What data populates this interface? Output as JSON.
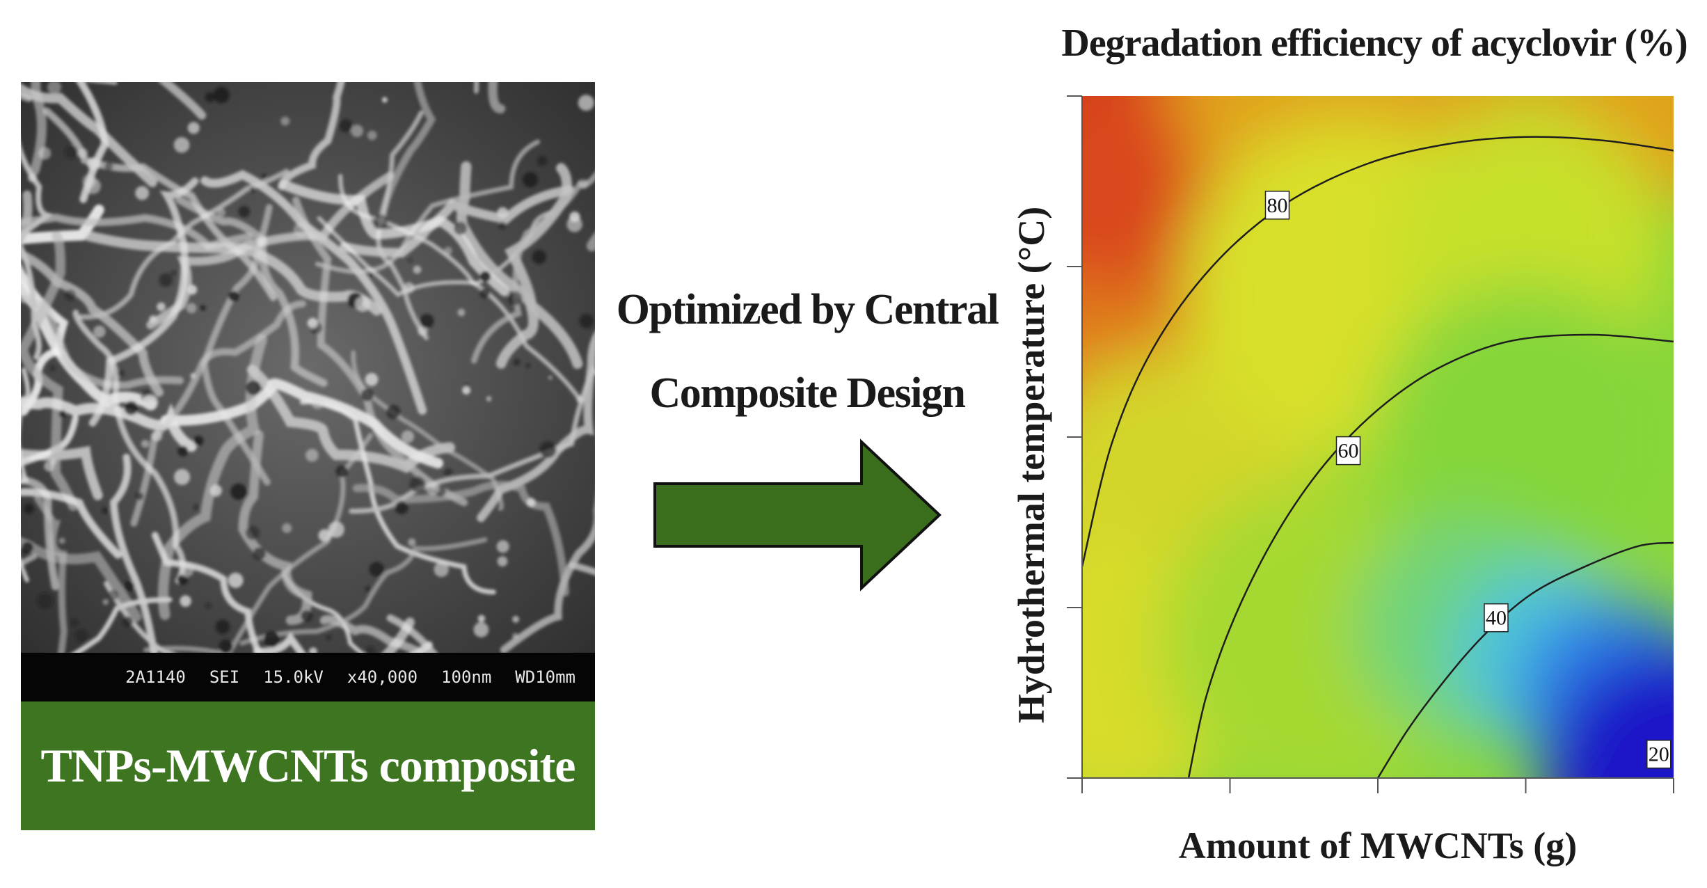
{
  "sem_panel": {
    "scalebar": {
      "sample_id": "2A1140",
      "detector": "SEI",
      "voltage": "15.0kV",
      "magnification": "x40,000",
      "scale": "100nm",
      "working_distance": "WD10mm"
    },
    "caption": "TNPs-MWCNTs composite"
  },
  "method": {
    "line1": "Optimized by Central",
    "line2": "Composite Design"
  },
  "colors": {
    "caption_bg": "#3e7520",
    "arrow_fill": "#3b6e1c",
    "arrow_stroke": "#111111",
    "high": "#c41a1a",
    "mid": "#d8e02a",
    "low": "#1a18c8"
  },
  "chart_data": {
    "type": "contour",
    "title": "Degradation efficiency of acyclovir (%)",
    "xlabel": "Amount of MWCNTs (g)",
    "ylabel": "Hydrothermal temperature (°C)",
    "x_ticks": 5,
    "y_ticks": 5,
    "tick_labels_shown": false,
    "contours": [
      {
        "level": 80,
        "label": "80",
        "points": [
          [
            0.0,
            0.31
          ],
          [
            0.05,
            0.49
          ],
          [
            0.12,
            0.63
          ],
          [
            0.22,
            0.75
          ],
          [
            0.34,
            0.84
          ],
          [
            0.48,
            0.9
          ],
          [
            0.62,
            0.93
          ],
          [
            0.75,
            0.94
          ],
          [
            0.88,
            0.935
          ],
          [
            1.0,
            0.92
          ]
        ],
        "label_at": [
          0.33,
          0.84
        ]
      },
      {
        "level": 60,
        "label": "60",
        "points": [
          [
            0.18,
            0.0
          ],
          [
            0.21,
            0.12
          ],
          [
            0.26,
            0.24
          ],
          [
            0.33,
            0.36
          ],
          [
            0.41,
            0.46
          ],
          [
            0.5,
            0.54
          ],
          [
            0.6,
            0.6
          ],
          [
            0.72,
            0.64
          ],
          [
            0.86,
            0.65
          ],
          [
            1.0,
            0.64
          ]
        ],
        "label_at": [
          0.45,
          0.48
        ]
      },
      {
        "level": 40,
        "label": "40",
        "points": [
          [
            0.5,
            0.0
          ],
          [
            0.55,
            0.07
          ],
          [
            0.61,
            0.14
          ],
          [
            0.68,
            0.21
          ],
          [
            0.76,
            0.27
          ],
          [
            0.85,
            0.31
          ],
          [
            0.94,
            0.34
          ],
          [
            1.0,
            0.345
          ]
        ],
        "label_at": [
          0.7,
          0.235
        ]
      },
      {
        "level": 20,
        "label": "20",
        "points": [],
        "label_at": [
          0.975,
          0.035
        ]
      }
    ],
    "colorscale": "red (high) → yellow → green → cyan → blue (low)",
    "grid": false,
    "legend": "none"
  }
}
